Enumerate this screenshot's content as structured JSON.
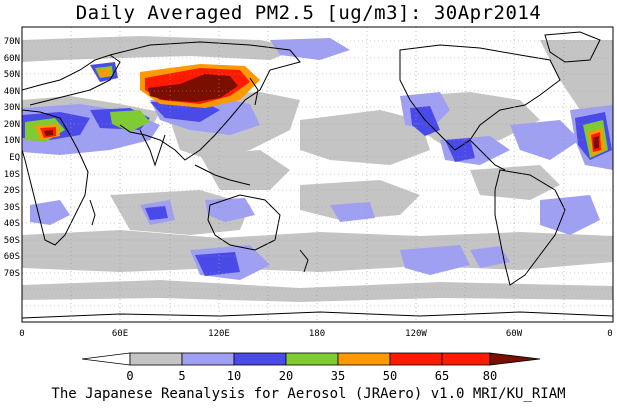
{
  "title": "Daily Averaged PM2.5 [ug/m3]: 30Apr2014",
  "footer": "The Japanese Reanalysis for Aerosol (JRAero) v1.0 MRI/KU_RIAM",
  "lat_labels": [
    "70N",
    "60N",
    "50N",
    "40N",
    "30N",
    "20N",
    "10N",
    "EQ",
    "10S",
    "20S",
    "30S",
    "40S",
    "50S",
    "60S",
    "70S"
  ],
  "lon_labels": [
    "0",
    "60E",
    "120E",
    "180",
    "120W",
    "60W",
    "0"
  ],
  "colorbar": {
    "levels": [
      "0",
      "5",
      "10",
      "20",
      "35",
      "50",
      "65",
      "80"
    ],
    "colors": [
      "#ffffff",
      "#c4c4c4",
      "#a0a0f2",
      "#4a4ae8",
      "#7ecb32",
      "#ff9900",
      "#ff1a00",
      "#7a0f00"
    ]
  }
}
